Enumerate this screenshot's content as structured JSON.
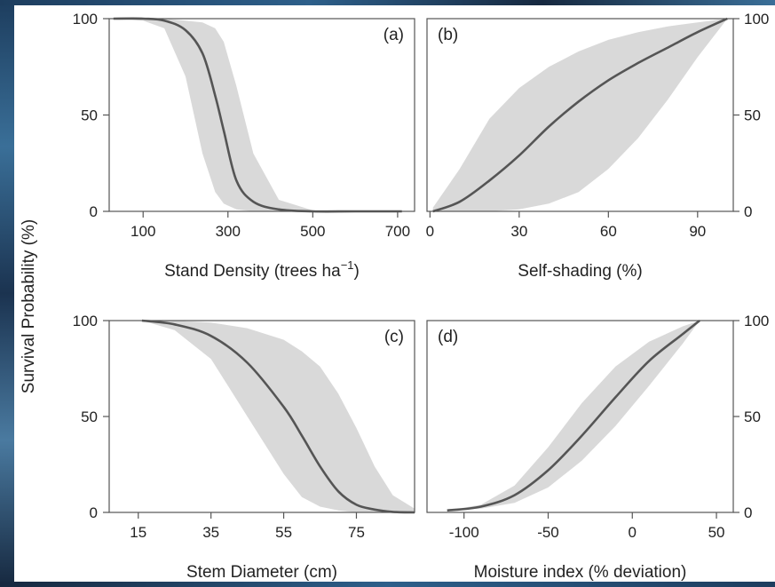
{
  "figure": {
    "ylabel": "Survival Probability (%)"
  },
  "chart_data": [
    {
      "type": "line",
      "panel": "(a)",
      "xlabel": "Stand Density (trees ha",
      "xlabel_sup": "−1",
      "xlabel_suffix": ")",
      "xlim": [
        20,
        740
      ],
      "ylim": [
        0,
        100
      ],
      "xticks": [
        100,
        300,
        500,
        700
      ],
      "yticks": [
        0,
        50,
        100
      ],
      "y_axis_side": "left",
      "series": [
        {
          "x": [
            30,
            100,
            150,
            200,
            240,
            270,
            290,
            320,
            360,
            420,
            500,
            600,
            710
          ],
          "y": [
            100,
            100,
            99,
            94,
            82,
            60,
            42,
            16,
            5,
            1,
            0,
            0,
            0
          ],
          "lower": [
            100,
            99,
            95,
            70,
            30,
            10,
            4,
            1,
            0,
            0,
            0,
            0,
            0
          ],
          "upper": [
            100,
            100,
            100,
            99,
            98,
            95,
            88,
            65,
            30,
            6,
            0.5,
            0,
            0
          ]
        }
      ]
    },
    {
      "type": "line",
      "panel": "(b)",
      "xlabel": "Self-shading (%)",
      "xlim": [
        -1,
        102
      ],
      "ylim": [
        0,
        100
      ],
      "xticks": [
        0,
        30,
        60,
        90
      ],
      "yticks": [
        0,
        50,
        100
      ],
      "y_axis_side": "right",
      "series": [
        {
          "x": [
            1,
            10,
            20,
            30,
            40,
            50,
            60,
            70,
            80,
            90,
            100
          ],
          "y": [
            0,
            5,
            16,
            29,
            44,
            57,
            68,
            77,
            85,
            93,
            100
          ],
          "lower": [
            0,
            0,
            0,
            1,
            4,
            10,
            22,
            38,
            58,
            80,
            100
          ],
          "upper": [
            2,
            22,
            48,
            64,
            75,
            83,
            89,
            93,
            96,
            98,
            100
          ]
        }
      ]
    },
    {
      "type": "line",
      "panel": "(c)",
      "xlabel": "Stem Diameter (cm)",
      "xlim": [
        7,
        91
      ],
      "ylim": [
        0,
        100
      ],
      "xticks": [
        15,
        35,
        55,
        75
      ],
      "yticks": [
        0,
        50,
        100
      ],
      "y_axis_side": "left",
      "series": [
        {
          "x": [
            16,
            25,
            35,
            45,
            55,
            60,
            65,
            70,
            75,
            80,
            85,
            91
          ],
          "y": [
            100,
            98,
            92,
            78,
            55,
            40,
            24,
            11,
            4,
            1.5,
            0.3,
            0
          ],
          "lower": [
            100,
            95,
            80,
            50,
            20,
            8,
            3,
            1,
            0,
            0,
            0,
            0
          ],
          "upper": [
            100,
            100,
            99,
            96,
            90,
            84,
            76,
            62,
            44,
            24,
            9,
            2
          ]
        }
      ]
    },
    {
      "type": "line",
      "panel": "(d)",
      "xlabel": "Moisture index (% deviation)",
      "xlim": [
        -122,
        60
      ],
      "ylim": [
        0,
        100
      ],
      "xticks": [
        -100,
        -50,
        0,
        50
      ],
      "yticks": [
        0,
        50,
        100
      ],
      "y_axis_side": "right",
      "series": [
        {
          "x": [
            -110,
            -90,
            -70,
            -50,
            -30,
            -10,
            10,
            30,
            40
          ],
          "y": [
            1,
            3,
            9,
            22,
            40,
            60,
            79,
            93,
            100
          ],
          "lower": [
            1,
            2,
            5,
            13,
            27,
            45,
            66,
            88,
            100
          ],
          "upper": [
            1,
            4,
            14,
            34,
            57,
            76,
            89,
            97,
            100
          ]
        }
      ]
    }
  ]
}
